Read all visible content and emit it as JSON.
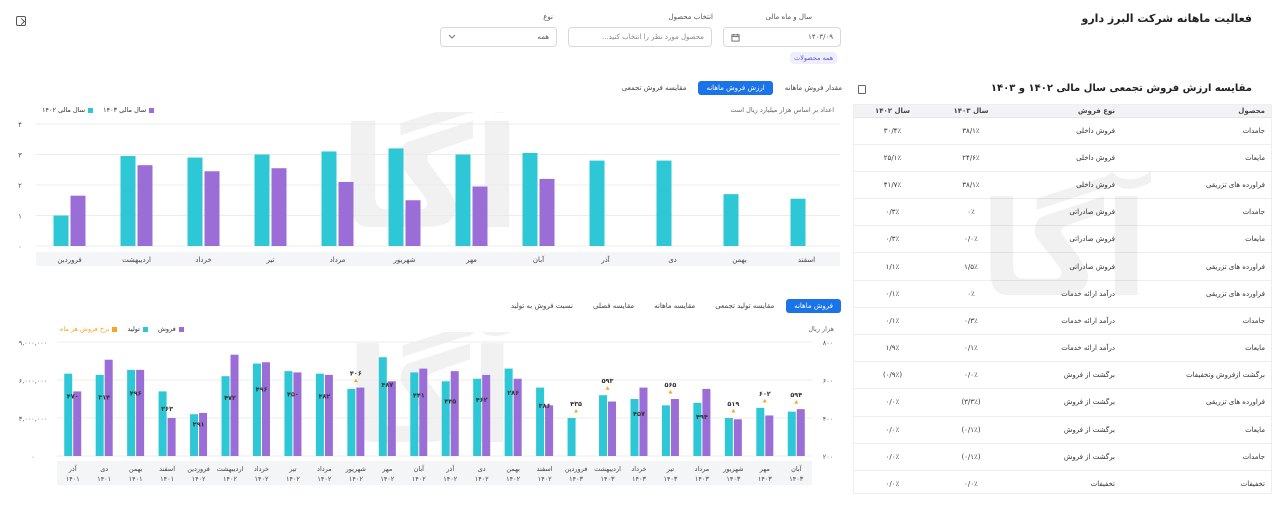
{
  "header": {
    "title": "فعالیت ماهانه شرکت البرز دارو"
  },
  "filters": {
    "year_month": {
      "label": "سال و ماه مالی",
      "value": "۱۴۰۳/۰۹"
    },
    "product": {
      "label": "انتخاب محصول",
      "placeholder": "محصول مورد نظر را انتخاب کنید...",
      "chip": "همه محصولات"
    },
    "type": {
      "label": "نوع",
      "value": "همه"
    }
  },
  "top_chart": {
    "tabs": [
      "مقدار فروش ماهانه",
      "ارزش فروش ماهانه",
      "مقایسه فروش تجمعی"
    ],
    "active_tab": 1,
    "note": "اعداد بر اساس هزار میلیارد ریال است",
    "legend": {
      "s1403": "سال مالی ۱۴۰۳",
      "s1402": "سال مالی ۱۴۰۲"
    },
    "colors": {
      "s1403": "#2ec7d6",
      "s1402": "#9a6dd7"
    }
  },
  "bottom_chart": {
    "tabs": [
      "فروش ماهانه",
      "مقایسه تولید تجمعی",
      "مقایسه ماهانه",
      "مقایسه فصلی",
      "نسبت فروش به تولید"
    ],
    "active_tab": 0,
    "note": "هزار ریال",
    "legend": {
      "sales": "فروش",
      "production": "تولید",
      "rate": "نرخ فروش هر ماه"
    },
    "colors": {
      "sales": "#2ec7d6",
      "production": "#9a6dd7",
      "rate": "#f5a623"
    }
  },
  "table": {
    "title": "مقایسه ارزش فروش تجمعی سال مالی ۱۴۰۲ و ۱۴۰۳",
    "headers": [
      "محصول",
      "نوع فروش",
      "سال ۱۴۰۳",
      "سال ۱۴۰۲"
    ],
    "rows": [
      [
        "جامدات",
        "فروش داخلی",
        "۳۸/۱٪",
        "۳۰/۴٪"
      ],
      [
        "مایعات",
        "فروش داخلی",
        "۲۴/۶٪",
        "۲۵/۱٪"
      ],
      [
        "فراورده های تزریقی",
        "فروش داخلی",
        "۳۸/۱٪",
        "۴۱/۷٪"
      ],
      [
        "جامدات",
        "فروش صادراتی",
        "۰٪",
        "۰/۳٪"
      ],
      [
        "مایعات",
        "فروش صادراتی",
        "۰/۰٪",
        "۰/۳٪"
      ],
      [
        "فراورده های تزریقی",
        "فروش صادراتی",
        "۱/۵٪",
        "۱/۱٪"
      ],
      [
        "فراورده های تزریقی",
        "درآمد ارائه خدمات",
        "۰٪",
        "۰/۱٪"
      ],
      [
        "جامدات",
        "درآمد ارائه خدمات",
        "۰/۳٪",
        "۰/۱٪"
      ],
      [
        "مایعات",
        "درآمد ارائه خدمات",
        "۰/۱٪",
        "۱/۹٪"
      ],
      [
        "برگشت ازفروش وتخفیفات",
        "برگشت از فروش",
        "۰/۰٪",
        "(۰/۹٪)"
      ],
      [
        "فراورده های تزریقی",
        "برگشت از فروش",
        "(۳/۳٪)",
        "۰/۰٪"
      ],
      [
        "مایعات",
        "برگشت از فروش",
        "(۰/۱٪)",
        "۰/۰٪"
      ],
      [
        "جامدات",
        "برگشت از فروش",
        "(۰/۱٪)",
        "۰/۰٪"
      ],
      [
        "تخفیفات",
        "تخفیفات",
        "۰/۰٪",
        "۰/۰٪"
      ]
    ]
  },
  "chart_data": [
    {
      "type": "bar",
      "categories": [
        "اسفند",
        "بهمن",
        "دی",
        "آذر",
        "آبان",
        "مهر",
        "شهریور",
        "مرداد",
        "تیر",
        "خرداد",
        "اردیبهشت",
        "فروردین"
      ],
      "series": [
        {
          "name": "سال مالی ۱۴۰۳",
          "values": [
            1.55,
            1.7,
            2.8,
            2.8,
            3.05,
            3.0,
            3.2,
            3.1,
            3.0,
            2.9,
            2.95,
            1.0
          ]
        },
        {
          "name": "سال مالی ۱۴۰۲",
          "values": [
            0,
            0,
            0,
            0,
            2.2,
            1.95,
            1.5,
            2.1,
            2.55,
            2.45,
            2.65,
            1.65
          ]
        }
      ],
      "yticks": [
        "۴",
        "۳",
        "۲",
        "۱",
        "۰"
      ],
      "ylim": [
        0,
        4
      ]
    },
    {
      "type": "bar",
      "categories": [
        [
          "آذر",
          "۱۴۰۱"
        ],
        [
          "دی",
          "۱۴۰۱"
        ],
        [
          "بهمن",
          "۱۴۰۱"
        ],
        [
          "اسفند",
          "۱۴۰۱"
        ],
        [
          "فروردین",
          "۱۴۰۲"
        ],
        [
          "اردیبهشت",
          "۱۴۰۲"
        ],
        [
          "خرداد",
          "۱۴۰۲"
        ],
        [
          "تیر",
          "۱۴۰۲"
        ],
        [
          "مرداد",
          "۱۴۰۲"
        ],
        [
          "شهریور",
          "۱۴۰۲"
        ],
        [
          "مهر",
          "۱۴۰۲"
        ],
        [
          "آبان",
          "۱۴۰۲"
        ],
        [
          "آذر",
          "۱۴۰۲"
        ],
        [
          "دی",
          "۱۴۰۲"
        ],
        [
          "بهمن",
          "۱۴۰۲"
        ],
        [
          "اسفند",
          "۱۴۰۲"
        ],
        [
          "فروردین",
          "۱۴۰۳"
        ],
        [
          "اردیبهشت",
          "۱۴۰۳"
        ],
        [
          "خرداد",
          "۱۴۰۳"
        ],
        [
          "تیر",
          "۱۴۰۳"
        ],
        [
          "مرداد",
          "۱۴۰۳"
        ],
        [
          "شهریور",
          "۱۴۰۳"
        ],
        [
          "مهر",
          "۱۴۰۳"
        ],
        [
          "آبان",
          "۱۴۰۳"
        ]
      ],
      "series": [
        {
          "name": "فروش",
          "values": [
            6500000,
            6400000,
            6800000,
            5100000,
            3300000,
            6300000,
            7300000,
            6700000,
            6500000,
            5300000,
            7800000,
            6600000,
            5900000,
            6100000,
            6900000,
            5400000,
            3000000,
            4800000,
            4500000,
            4000000,
            4200000,
            3000000,
            3800000,
            3500000
          ]
        },
        {
          "name": "تولید",
          "values": [
            5100000,
            7600000,
            6800000,
            3000000,
            3400000,
            8000000,
            7400000,
            6600000,
            6400000,
            5400000,
            5900000,
            6900000,
            6700000,
            6400000,
            6100000,
            4000000,
            0,
            4300000,
            5400000,
            4500000,
            5300000,
            2900000,
            3200000,
            3700000
          ]
        }
      ],
      "rate_labels": [
        "۴۷۰",
        "۳۱۴",
        "۴۹۶",
        "۲۶۳",
        "۳۹۱",
        "۴۷۲",
        "۴۹۶",
        "۴۵۰",
        "۴۸۲",
        "۴۰۶",
        "۴۸۷",
        "۴۴۱",
        "۴۴۵",
        "۴۶۲",
        "۲۸۶",
        "۳۸۶",
        "۴۳۵",
        "۵۹۳",
        "۴۵۷",
        "۵۶۵",
        "۴۹۴",
        "۵۱۹",
        "۶۰۲",
        "۵۹۴"
      ],
      "rate_markers": [
        9,
        16,
        17,
        19,
        21,
        22,
        23
      ],
      "y_left_ticks": [
        "۹,۰۰۰,۰۰۰",
        "۶,۰۰۰,۰۰۰",
        "۳,۰۰۰,۰۰۰",
        "۰"
      ],
      "y_right_ticks": [
        "۸۰۰",
        "۶۰۰",
        "۴۰۰",
        "۲۰۰"
      ],
      "ylim": [
        0,
        9000000
      ],
      "y2lim": [
        200,
        800
      ]
    }
  ]
}
